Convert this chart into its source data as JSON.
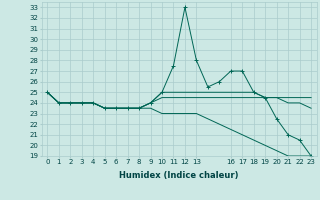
{
  "title": "",
  "xlabel": "Humidex (Indice chaleur)",
  "background_color": "#cce8e4",
  "grid_color": "#aacccc",
  "line_color": "#006655",
  "xlim": [
    -0.5,
    23.5
  ],
  "ylim": [
    19,
    33.5
  ],
  "yticks": [
    19,
    20,
    21,
    22,
    23,
    24,
    25,
    26,
    27,
    28,
    29,
    30,
    31,
    32,
    33
  ],
  "xticks": [
    0,
    1,
    2,
    3,
    4,
    5,
    6,
    7,
    8,
    9,
    10,
    11,
    12,
    13,
    16,
    17,
    18,
    19,
    20,
    21,
    22,
    23
  ],
  "series": [
    [
      25.0,
      24.0,
      24.0,
      24.0,
      24.0,
      23.5,
      23.5,
      23.5,
      23.5,
      24.0,
      25.0,
      27.5,
      33.0,
      28.0,
      25.5,
      26.0,
      27.0,
      27.0,
      25.0,
      24.5,
      22.5,
      21.0,
      20.5,
      19.0
    ],
    [
      25.0,
      24.0,
      24.0,
      24.0,
      24.0,
      23.5,
      23.5,
      23.5,
      23.5,
      24.0,
      25.0,
      25.0,
      25.0,
      25.0,
      25.0,
      25.0,
      25.0,
      25.0,
      25.0,
      24.5,
      24.5,
      24.5,
      24.5,
      24.5
    ],
    [
      25.0,
      24.0,
      24.0,
      24.0,
      24.0,
      23.5,
      23.5,
      23.5,
      23.5,
      24.0,
      24.5,
      24.5,
      24.5,
      24.5,
      24.5,
      24.5,
      24.5,
      24.5,
      24.5,
      24.5,
      24.5,
      24.0,
      24.0,
      23.5
    ],
    [
      25.0,
      24.0,
      24.0,
      24.0,
      24.0,
      23.5,
      23.5,
      23.5,
      23.5,
      23.5,
      23.0,
      23.0,
      23.0,
      23.0,
      22.5,
      22.0,
      21.5,
      21.0,
      20.5,
      20.0,
      19.5,
      19.0,
      19.0,
      19.0
    ]
  ],
  "tick_fontsize": 5.0,
  "xlabel_fontsize": 6.0
}
